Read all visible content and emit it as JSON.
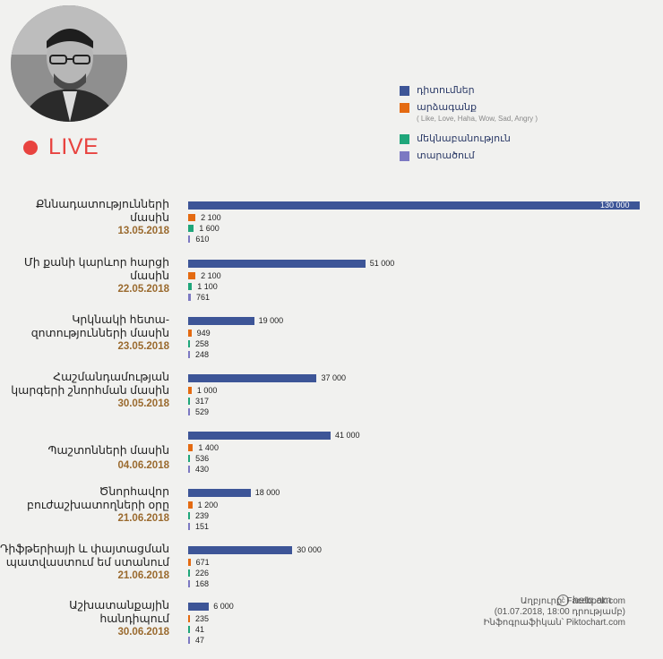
{
  "live_label": "LIVE",
  "legend": [
    {
      "label": "դիտումներ",
      "color": "#3d5597"
    },
    {
      "label": "արձագանք",
      "color": "#e46a11",
      "note": "( Like, Love, Haha, Wow, Sad, Angry )"
    },
    {
      "label": "մեկնաբանություն",
      "color": "#1fa67a"
    },
    {
      "label": "տարածում",
      "color": "#7c79c2"
    }
  ],
  "chart_data": {
    "type": "bar",
    "orientation": "horizontal",
    "categories": [
      {
        "name": "Քննադատությունների մասին",
        "date": "13.05.2018"
      },
      {
        "name": "Մի քանի կարևոր հարցի մասին",
        "date": "22.05.2018"
      },
      {
        "name": "Կրկնակի հետա-զոտությունների մասին",
        "date": "23.05.2018"
      },
      {
        "name": "Հաշմանդամության կարգերի շնորհման մասին",
        "date": "30.05.2018"
      },
      {
        "name": "Պաշտոնների մասին",
        "date": "04.06.2018"
      },
      {
        "name": "Ծնորհավոր բուժաշխատողների օրը",
        "date": "21.06.2018"
      },
      {
        "name": "Դիֆթերիայի և փայտացման պատվաստում եմ ստանում",
        "date": "21.06.2018"
      },
      {
        "name": "Աշխատանքային հանդիպում",
        "date": "30.06.2018"
      }
    ],
    "series": [
      {
        "name": "դիտումներ",
        "color": "#3d5597",
        "values": [
          130000,
          51000,
          19000,
          37000,
          41000,
          18000,
          30000,
          6000
        ],
        "labels": [
          "130 000",
          "51 000",
          "19 000",
          "37 000",
          "41 000",
          "18 000",
          "30 000",
          "6 000"
        ]
      },
      {
        "name": "արձագանք",
        "color": "#e46a11",
        "values": [
          2100,
          2100,
          949,
          1000,
          1400,
          1200,
          671,
          235
        ],
        "labels": [
          "2 100",
          "2 100",
          "949",
          "1 000",
          "1 400",
          "1 200",
          "671",
          "235"
        ]
      },
      {
        "name": "մեկնաբանություն",
        "color": "#1fa67a",
        "values": [
          1600,
          1100,
          258,
          317,
          536,
          239,
          226,
          41
        ],
        "labels": [
          "1 600",
          "1 100",
          "258",
          "317",
          "536",
          "239",
          "226",
          "41"
        ]
      },
      {
        "name": "տարածում",
        "color": "#7c79c2",
        "values": [
          610,
          761,
          248,
          529,
          430,
          151,
          168,
          47
        ],
        "labels": [
          "610",
          "761",
          "248",
          "529",
          "430",
          "151",
          "168",
          "47"
        ]
      }
    ],
    "xlim": [
      0,
      130000
    ]
  },
  "credits": {
    "brand": "hetq.am",
    "source": "Աղբյուրը՝ Facebook.com",
    "date_note": "(01.07.2018, 18:00 դրությամբ)",
    "infographic": "Ինֆոգրաֆիկան՝ Piktochart.com"
  }
}
